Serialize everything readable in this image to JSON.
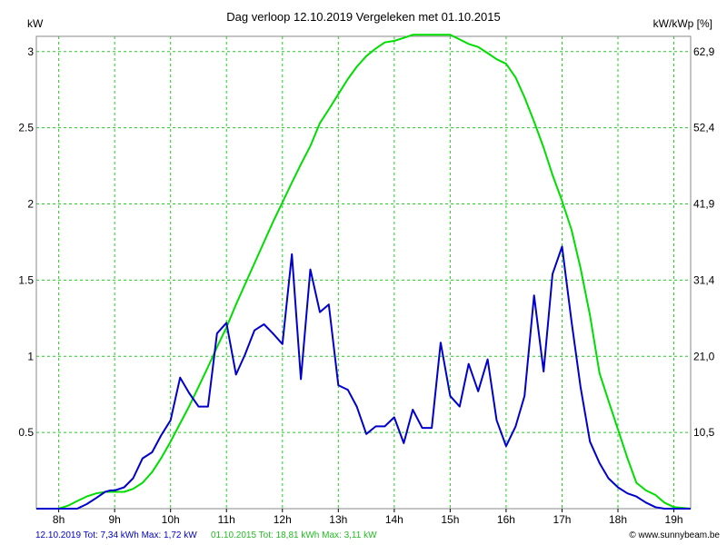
{
  "chart_data": {
    "type": "line",
    "title": "Dag  verloop 12.10.2019   Vergeleken met 01.10.2015",
    "y_left_unit": "kW",
    "y_right_unit": "kW/kWp [%]",
    "x_range": [
      7.6,
      19.3
    ],
    "ylim": [
      0,
      3.1
    ],
    "grid": true,
    "x_ticks": [
      {
        "value": 8,
        "label": "8h"
      },
      {
        "value": 9,
        "label": "9h"
      },
      {
        "value": 10,
        "label": "10h"
      },
      {
        "value": 11,
        "label": "11h"
      },
      {
        "value": 12,
        "label": "12h"
      },
      {
        "value": 13,
        "label": "13h"
      },
      {
        "value": 14,
        "label": "14h"
      },
      {
        "value": 15,
        "label": "15h"
      },
      {
        "value": 16,
        "label": "16h"
      },
      {
        "value": 17,
        "label": "17h"
      },
      {
        "value": 18,
        "label": "18h"
      },
      {
        "value": 19,
        "label": "19h"
      }
    ],
    "y_left_ticks": [
      {
        "value": 0.5,
        "label": "0.5"
      },
      {
        "value": 1,
        "label": "1"
      },
      {
        "value": 1.5,
        "label": "1.5"
      },
      {
        "value": 2,
        "label": "2"
      },
      {
        "value": 2.5,
        "label": "2.5"
      },
      {
        "value": 3,
        "label": "3"
      }
    ],
    "y_right_ticks": [
      {
        "value": 0.5,
        "label": "10,5"
      },
      {
        "value": 1,
        "label": "21,0"
      },
      {
        "value": 1.5,
        "label": "31,4"
      },
      {
        "value": 2,
        "label": "41,9"
      },
      {
        "value": 2.5,
        "label": "52,4"
      },
      {
        "value": 3,
        "label": "62,9"
      }
    ],
    "series": [
      {
        "name": "12.10.2019",
        "color": "#0000cc",
        "x": [
          7.6,
          8.33,
          8.5,
          8.67,
          8.83,
          8.92,
          9.0,
          9.17,
          9.33,
          9.5,
          9.67,
          9.83,
          10.0,
          10.17,
          10.33,
          10.5,
          10.67,
          10.83,
          11.0,
          11.17,
          11.33,
          11.5,
          11.67,
          11.83,
          12.0,
          12.17,
          12.33,
          12.5,
          12.67,
          12.83,
          13.0,
          13.17,
          13.33,
          13.5,
          13.67,
          13.83,
          14.0,
          14.17,
          14.33,
          14.5,
          14.67,
          14.83,
          15.0,
          15.17,
          15.33,
          15.5,
          15.67,
          15.83,
          16.0,
          16.17,
          16.33,
          16.5,
          16.67,
          16.83,
          17.0,
          17.17,
          17.33,
          17.5,
          17.67,
          17.83,
          18.0,
          18.17,
          18.33,
          18.5,
          18.67,
          18.83,
          19.0,
          19.3
        ],
        "values": [
          0.0,
          0.0,
          0.03,
          0.07,
          0.11,
          0.12,
          0.12,
          0.14,
          0.2,
          0.33,
          0.37,
          0.48,
          0.58,
          0.86,
          0.76,
          0.67,
          0.67,
          1.15,
          1.22,
          0.88,
          1.01,
          1.17,
          1.21,
          1.15,
          1.08,
          1.67,
          0.85,
          1.57,
          1.29,
          1.34,
          0.81,
          0.78,
          0.67,
          0.49,
          0.54,
          0.54,
          0.6,
          0.43,
          0.65,
          0.53,
          0.53,
          1.09,
          0.74,
          0.67,
          0.95,
          0.77,
          0.98,
          0.58,
          0.41,
          0.54,
          0.74,
          1.4,
          0.9,
          1.54,
          1.72,
          1.23,
          0.8,
          0.44,
          0.3,
          0.2,
          0.14,
          0.1,
          0.08,
          0.04,
          0.01,
          0.0,
          0.0,
          0.0
        ]
      },
      {
        "name": "01.10.2015",
        "color": "#00dd00",
        "x": [
          7.6,
          8.0,
          8.17,
          8.33,
          8.5,
          8.67,
          8.83,
          9.0,
          9.17,
          9.33,
          9.5,
          9.67,
          9.83,
          10.0,
          10.17,
          10.33,
          10.5,
          10.67,
          10.83,
          11.0,
          11.17,
          11.33,
          11.5,
          11.67,
          11.83,
          12.0,
          12.17,
          12.33,
          12.5,
          12.67,
          12.83,
          13.0,
          13.17,
          13.33,
          13.5,
          13.67,
          13.83,
          14.0,
          14.17,
          14.33,
          14.5,
          14.67,
          14.83,
          15.0,
          15.17,
          15.33,
          15.5,
          15.67,
          15.83,
          16.0,
          16.17,
          16.33,
          16.5,
          16.67,
          16.83,
          17.0,
          17.17,
          17.33,
          17.5,
          17.67,
          17.83,
          18.0,
          18.17,
          18.33,
          18.5,
          18.67,
          18.83,
          19.0,
          19.3
        ],
        "values": [
          0.0,
          0.0,
          0.02,
          0.05,
          0.08,
          0.1,
          0.11,
          0.11,
          0.11,
          0.13,
          0.17,
          0.24,
          0.33,
          0.44,
          0.56,
          0.67,
          0.8,
          0.93,
          1.06,
          1.19,
          1.34,
          1.47,
          1.61,
          1.75,
          1.88,
          2.01,
          2.14,
          2.26,
          2.38,
          2.53,
          2.62,
          2.72,
          2.82,
          2.9,
          2.97,
          3.02,
          3.06,
          3.07,
          3.09,
          3.11,
          3.11,
          3.11,
          3.11,
          3.11,
          3.08,
          3.05,
          3.03,
          2.99,
          2.95,
          2.92,
          2.83,
          2.7,
          2.54,
          2.37,
          2.19,
          2.02,
          1.83,
          1.58,
          1.27,
          0.89,
          0.71,
          0.52,
          0.33,
          0.17,
          0.12,
          0.09,
          0.04,
          0.01,
          0.0
        ]
      }
    ]
  },
  "footer": {
    "blue_text": "12.10.2019 Tot: 7,34 kWh Max: 1,72 kW",
    "green_text": "01.10.2015 Tot: 18,81 kWh Max: 3,11 kW",
    "credit_text": "© www.sunnybeam.be"
  }
}
